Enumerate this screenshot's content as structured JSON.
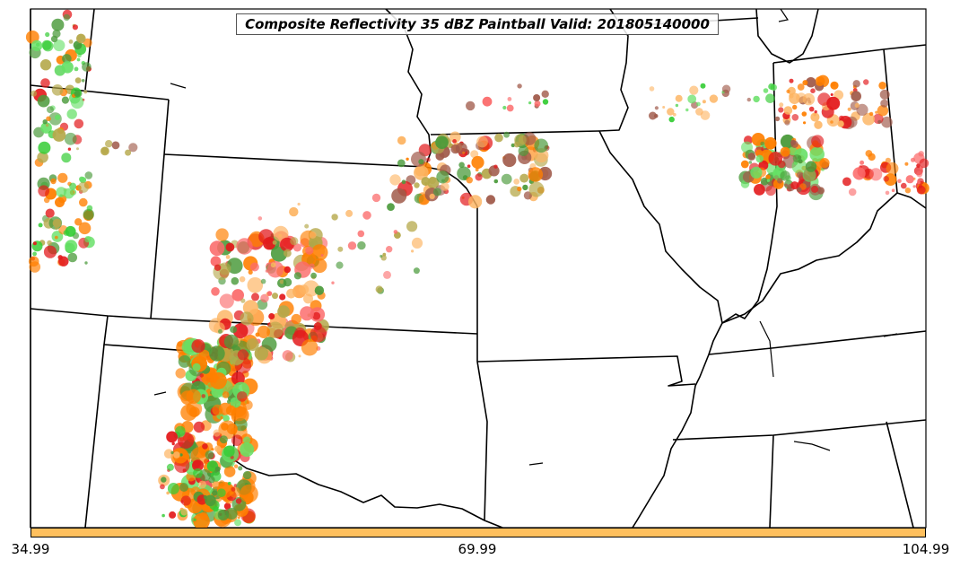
{
  "title": "Composite Reflectivity 35 dBZ Paintball Valid: 201805140000",
  "colorbar": {
    "color": "#ffc05e",
    "ticks": [
      "34.99",
      "69.99",
      "104.99"
    ]
  },
  "palette": {
    "orange": "#ff7f00",
    "red": "#e31a1c",
    "light_red": "#fb6a6a",
    "green": "#33cc33",
    "light_green": "#66e066",
    "dark_green": "#4a9a3a",
    "olive": "#b5a84a",
    "light_orange": "#fdb462",
    "brown": "#a05a4a"
  }
}
